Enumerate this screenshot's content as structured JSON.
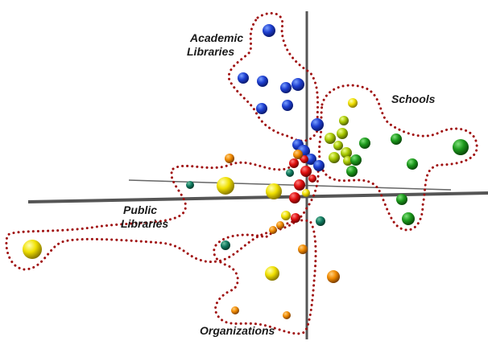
{
  "clusters": [
    {
      "lines": [
        "Academic",
        "Libraries"
      ]
    },
    {
      "lines": [
        "Schools"
      ]
    },
    {
      "lines": [
        "Public",
        "Libraries"
      ]
    },
    {
      "lines": [
        "Organizations"
      ]
    }
  ]
}
